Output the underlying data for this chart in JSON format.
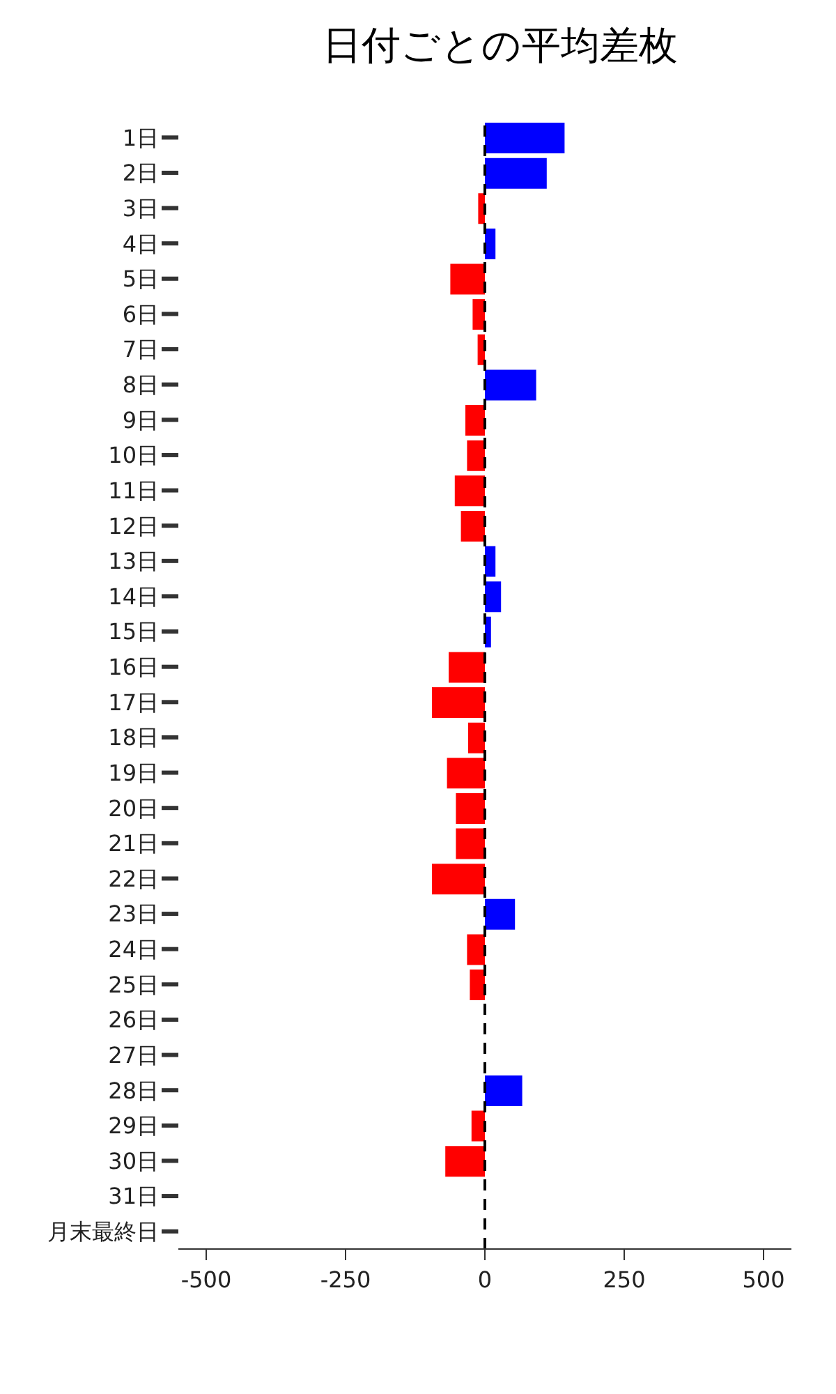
{
  "chart_data": {
    "type": "bar",
    "orientation": "horizontal",
    "title": "日付ごとの平均差枚",
    "categories": [
      "1日",
      "2日",
      "3日",
      "4日",
      "5日",
      "6日",
      "7日",
      "8日",
      "9日",
      "10日",
      "11日",
      "12日",
      "13日",
      "14日",
      "15日",
      "16日",
      "17日",
      "18日",
      "19日",
      "20日",
      "21日",
      "22日",
      "23日",
      "24日",
      "25日",
      "26日",
      "27日",
      "28日",
      "29日",
      "30日",
      "31日",
      "月末最終日"
    ],
    "values": [
      143,
      111,
      -12,
      19,
      -62,
      -22,
      -13,
      92,
      -35,
      -32,
      -54,
      -43,
      19,
      29,
      11,
      -65,
      -95,
      -30,
      -68,
      -52,
      -52,
      -95,
      54,
      -32,
      -27,
      null,
      null,
      67,
      -24,
      -71,
      null,
      0
    ],
    "colors": [
      "#0000ff",
      "#0000ff",
      "#ff0000",
      "#0000ff",
      "#ff0000",
      "#ff0000",
      "#ff0000",
      "#0000ff",
      "#ff0000",
      "#ff0000",
      "#ff0000",
      "#ff0000",
      "#0000ff",
      "#0000ff",
      "#0000ff",
      "#ff0000",
      "#ff0000",
      "#ff0000",
      "#ff0000",
      "#ff0000",
      "#ff0000",
      "#ff0000",
      "#0000ff",
      "#ff0000",
      "#ff0000",
      "#ff0000",
      "#ff0000",
      "#0000ff",
      "#ff0000",
      "#ff0000",
      "#ff0000",
      "#ff0000"
    ],
    "xlim": [
      -550,
      550
    ],
    "xticks": [
      -500,
      -250,
      0,
      250,
      500
    ],
    "grid": false,
    "legend": false,
    "ref_lines": [
      {
        "axis": "x",
        "value": 0,
        "color": "#000000",
        "line_style": "dashed"
      }
    ]
  }
}
